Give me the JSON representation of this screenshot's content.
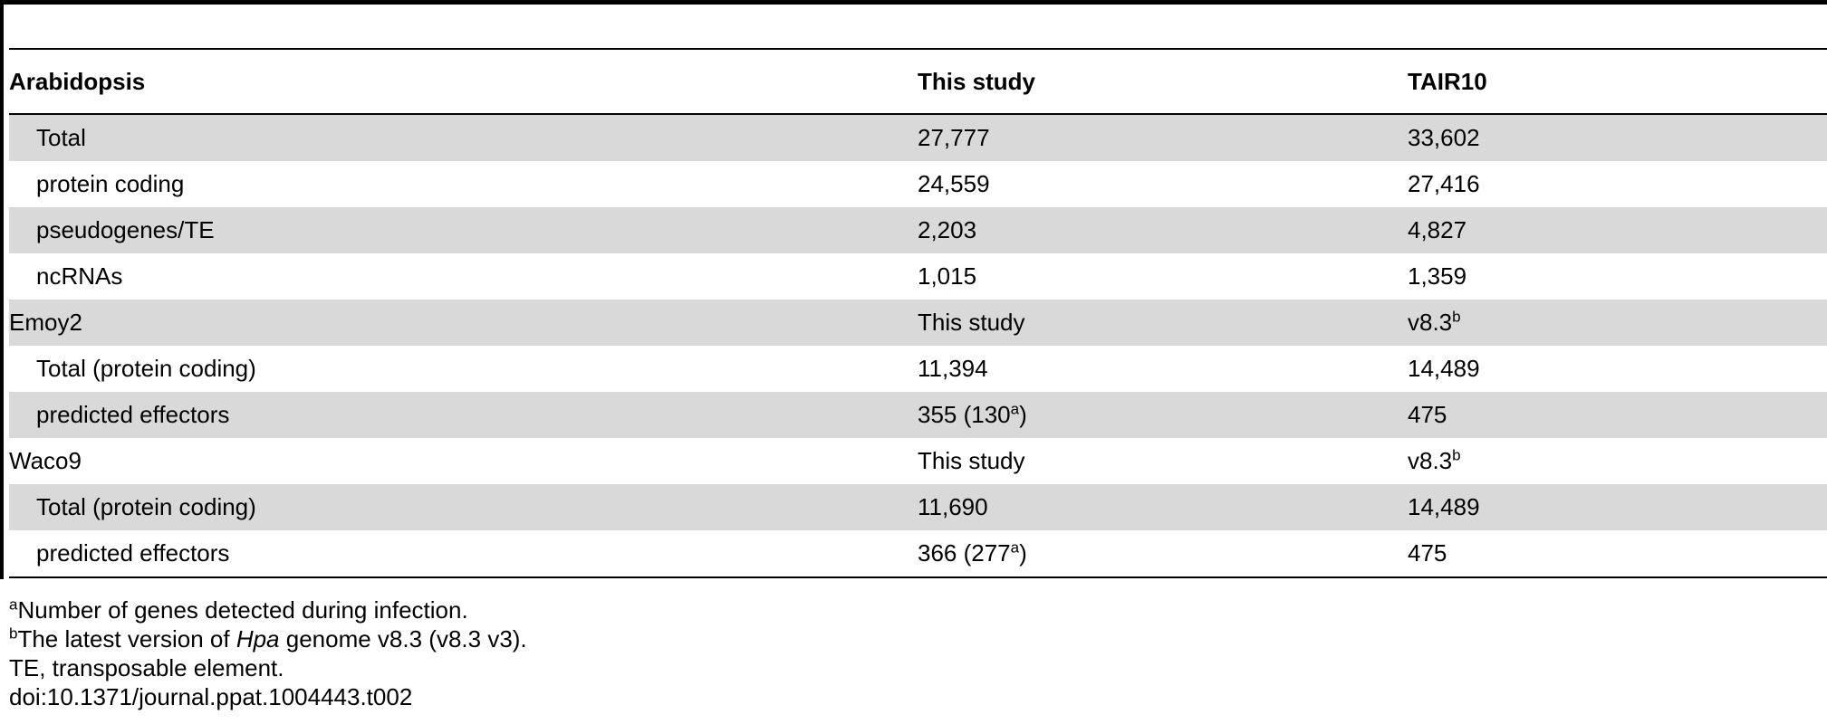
{
  "table": {
    "headers": [
      "Arabidopsis",
      "This study",
      "TAIR10"
    ],
    "rows": [
      {
        "label": "Total",
        "indent": true,
        "shaded": true,
        "c1": "27,777",
        "c1_sup": "",
        "c1_suffix": "",
        "c2": "33,602",
        "c2_sup": ""
      },
      {
        "label": "protein coding",
        "indent": true,
        "shaded": false,
        "c1": "24,559",
        "c1_sup": "",
        "c1_suffix": "",
        "c2": "27,416",
        "c2_sup": ""
      },
      {
        "label": "pseudogenes/TE",
        "indent": true,
        "shaded": true,
        "c1": "2,203",
        "c1_sup": "",
        "c1_suffix": "",
        "c2": "4,827",
        "c2_sup": ""
      },
      {
        "label": "ncRNAs",
        "indent": true,
        "shaded": false,
        "c1": "1,015",
        "c1_sup": "",
        "c1_suffix": "",
        "c2": "1,359",
        "c2_sup": ""
      },
      {
        "label": "Emoy2",
        "indent": false,
        "shaded": true,
        "c1": "This study",
        "c1_sup": "",
        "c1_suffix": "",
        "c2": "v8.3",
        "c2_sup": "b"
      },
      {
        "label": "Total (protein coding)",
        "indent": true,
        "shaded": false,
        "c1": "11,394",
        "c1_sup": "",
        "c1_suffix": "",
        "c2": "14,489",
        "c2_sup": ""
      },
      {
        "label": "predicted effectors",
        "indent": true,
        "shaded": true,
        "c1": "355 (130",
        "c1_sup": "a",
        "c1_suffix": ")",
        "c2": "475",
        "c2_sup": ""
      },
      {
        "label": "Waco9",
        "indent": false,
        "shaded": false,
        "c1": "This study",
        "c1_sup": "",
        "c1_suffix": "",
        "c2": "v8.3",
        "c2_sup": "b"
      },
      {
        "label": "Total (protein coding)",
        "indent": true,
        "shaded": true,
        "c1": "11,690",
        "c1_sup": "",
        "c1_suffix": "",
        "c2": "14,489",
        "c2_sup": ""
      },
      {
        "label": "predicted effectors",
        "indent": true,
        "shaded": false,
        "c1": "366 (277",
        "c1_sup": "a",
        "c1_suffix": ")",
        "c2": "475",
        "c2_sup": ""
      }
    ]
  },
  "footnotes": {
    "a_mark": "a",
    "a_text": "Number of genes detected during infection.",
    "b_mark": "b",
    "b_text_before": "The latest version of ",
    "b_text_italic": "Hpa",
    "b_text_after": " genome v8.3 (v8.3 v3).",
    "te_note": "TE, transposable element.",
    "doi": "doi:10.1371/journal.ppat.1004443.t002"
  }
}
